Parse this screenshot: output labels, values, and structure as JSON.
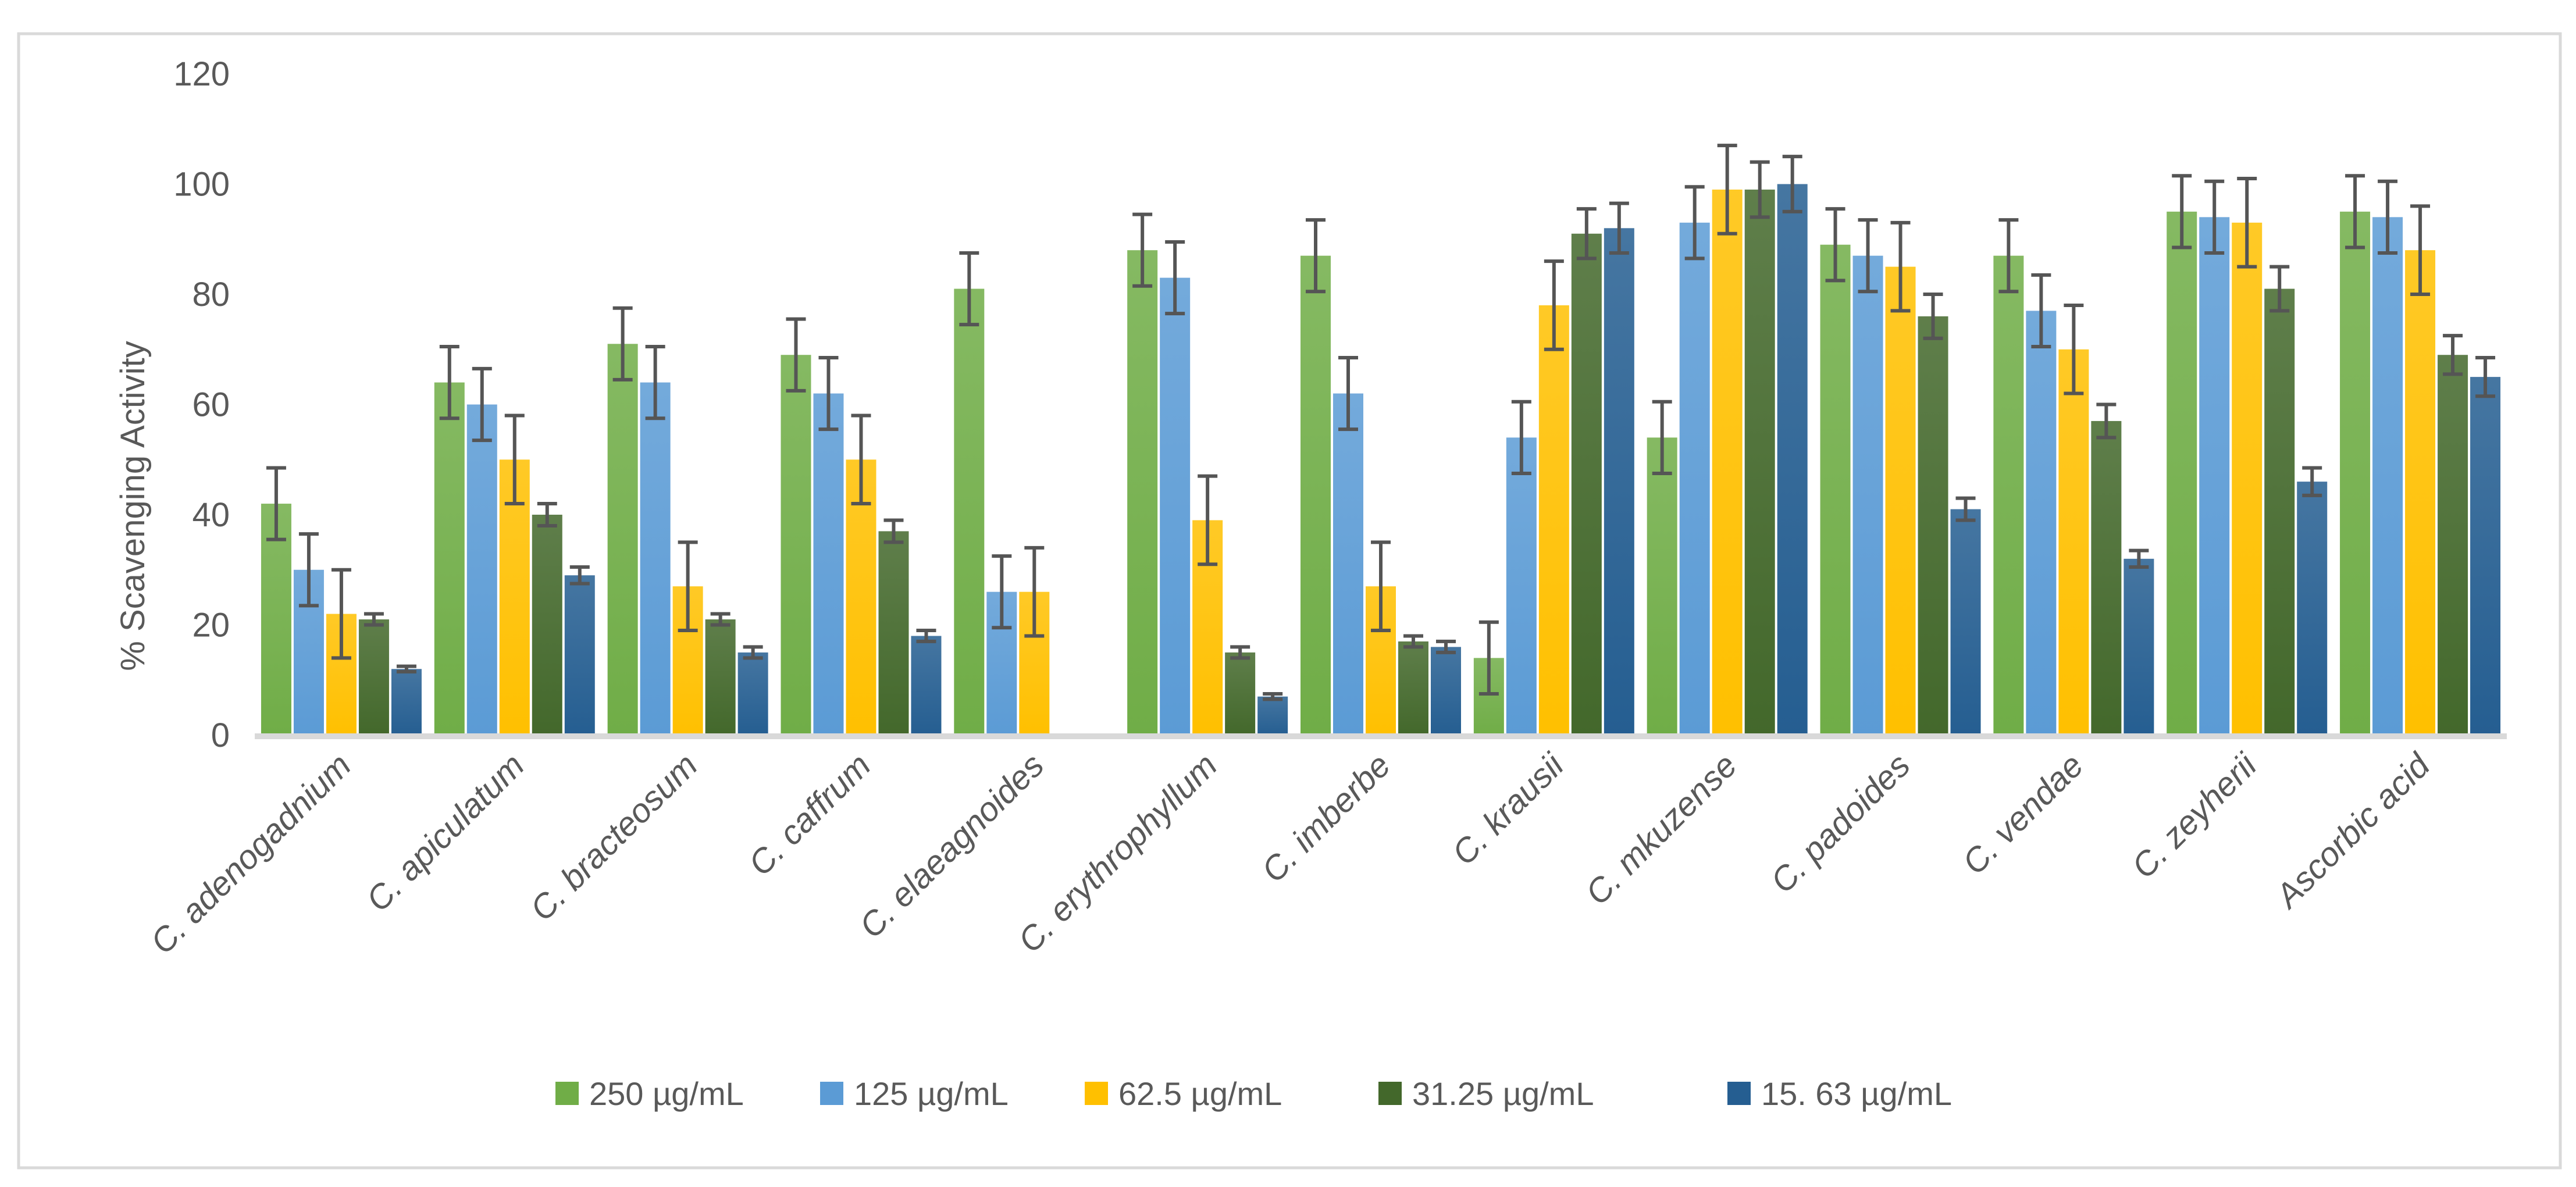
{
  "chart_data": {
    "type": "bar",
    "title": "",
    "xlabel": "",
    "ylabel": "% Scavenging Activity",
    "ylim": [
      0,
      120
    ],
    "yticks": [
      "0",
      "20",
      "40",
      "60",
      "80",
      "100",
      "120"
    ],
    "grid": false,
    "legend_position": "bottom",
    "categories": [
      "C. adenogadnium",
      "C. apiculatum",
      "C. bracteosum",
      "C. caffrum",
      "C. elaeagnoides",
      "C. erythrophyllum",
      "C. imberbe",
      "C. krausii",
      "C. mkuzense",
      "C. padoides",
      "C. vendae",
      "C. zeyherii",
      "Ascorbic acid"
    ],
    "series": [
      {
        "name": "250 µg/mL",
        "color": "#70AD47",
        "values": [
          42,
          64,
          71,
          69,
          81,
          88,
          87,
          14,
          54,
          89,
          87,
          95,
          95
        ],
        "errors": [
          6.5,
          6.5,
          6.5,
          6.5,
          6.5,
          6.5,
          6.5,
          6.5,
          6.5,
          6.5,
          6.5,
          6.5,
          6.5
        ]
      },
      {
        "name": "125 µg/mL",
        "color": "#5B9BD5",
        "values": [
          30,
          60,
          64,
          62,
          26,
          83,
          62,
          54,
          93,
          87,
          77,
          94,
          94
        ],
        "errors": [
          6.5,
          6.5,
          6.5,
          6.5,
          6.5,
          6.5,
          6.5,
          6.5,
          6.5,
          6.5,
          6.5,
          6.5,
          6.5
        ]
      },
      {
        "name": "62.5  µg/mL",
        "color": "#FFC000",
        "values": [
          22,
          50,
          27,
          50,
          26,
          39,
          27,
          78,
          99,
          85,
          70,
          93,
          88
        ],
        "errors": [
          8,
          8,
          8,
          8,
          8,
          8,
          8,
          8,
          8,
          8,
          8,
          8,
          8
        ]
      },
      {
        "name": "31.25  µg/mL",
        "color": "#43682B",
        "values": [
          21,
          40,
          21,
          37,
          null,
          15,
          17,
          91,
          99,
          76,
          57,
          81,
          69
        ],
        "errors": [
          1,
          2,
          1,
          2,
          null,
          1,
          1,
          4.5,
          5,
          4,
          3,
          4,
          3.5
        ]
      },
      {
        "name": "15. 63  µg/mL",
        "color": "#255E91",
        "values": [
          12,
          29,
          15,
          18,
          null,
          7,
          16,
          92,
          100,
          41,
          32,
          46,
          65
        ],
        "errors": [
          0.5,
          1.5,
          1,
          1,
          null,
          0.5,
          1,
          4.5,
          5,
          2,
          1.5,
          2.5,
          3.5
        ]
      }
    ]
  }
}
